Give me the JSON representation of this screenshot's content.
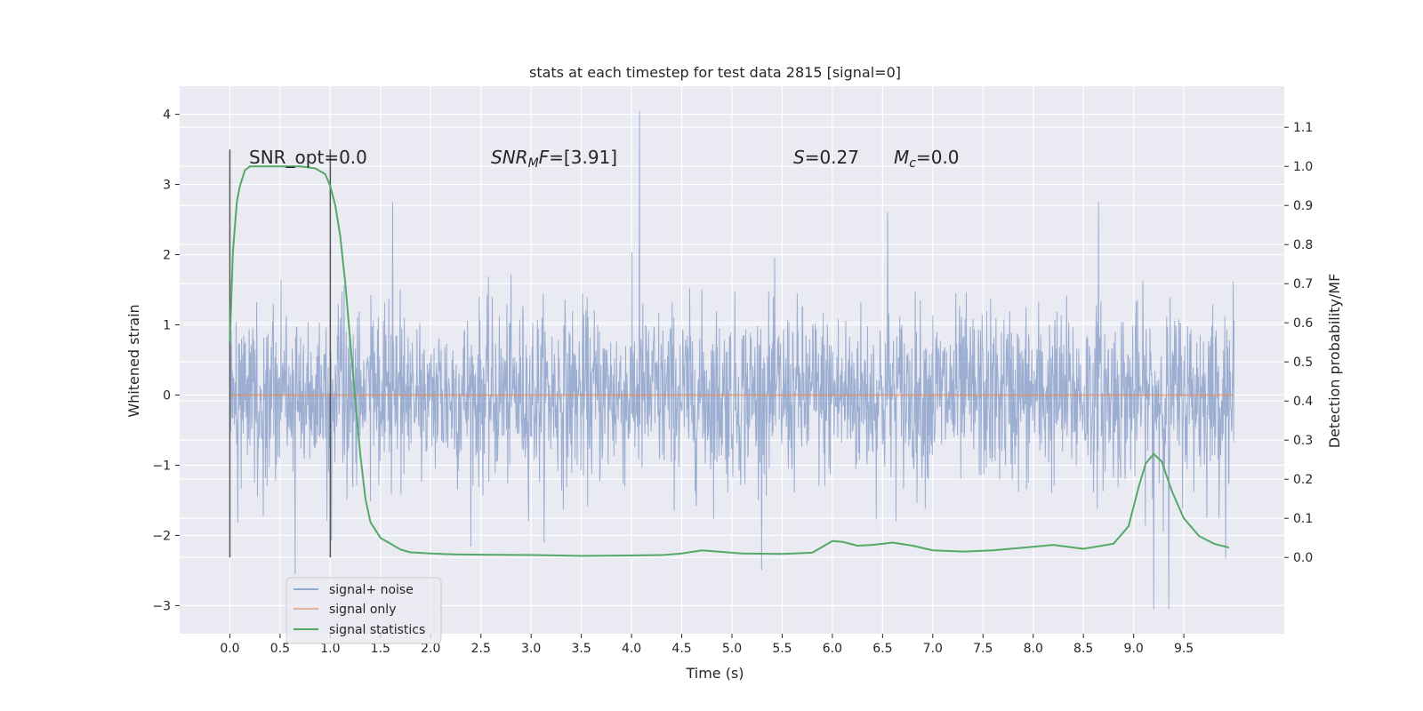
{
  "chart_data": {
    "type": "line",
    "title": "stats at each timestep for test data 2815 [signal=0]",
    "xlabel": "Time (s)",
    "ylabel_left": "Whitened strain",
    "ylabel_right": "Detection probability/MF",
    "xlim": [
      -0.5,
      10.5
    ],
    "ylim_left": [
      -3.4,
      4.4
    ],
    "ylim_right": [
      -0.195,
      1.205
    ],
    "x_ticks": [
      "0.0",
      "0.5",
      "1.0",
      "1.5",
      "2.0",
      "2.5",
      "3.0",
      "3.5",
      "4.0",
      "4.5",
      "5.0",
      "5.5",
      "6.0",
      "6.5",
      "7.0",
      "7.5",
      "8.0",
      "8.5",
      "9.0",
      "9.5"
    ],
    "y_left_ticks": [
      "4",
      "3",
      "2",
      "1",
      "0",
      "−1",
      "−2",
      "−3"
    ],
    "y_right_ticks": [
      "1.1",
      "1.0",
      "0.9",
      "0.8",
      "0.7",
      "0.6",
      "0.5",
      "0.4",
      "0.3",
      "0.2",
      "0.1",
      "0.0"
    ],
    "grid": true,
    "legend_position": "lower-left",
    "colors": {
      "background": "#eaeaf2",
      "grid": "#ffffff",
      "signal_noise": "#4c72b0",
      "signal_only": "#dd8452",
      "statistics": "#55a868",
      "markers": "#555555"
    },
    "annotations": {
      "snr_opt": "SNR_opt=0.0",
      "snr_mf_main": "SNR",
      "snr_mf_sub": "M",
      "snr_mf_rest": "F=[3.91]",
      "s_italic": "S",
      "s_value": "=0.27",
      "mc_main": "M",
      "mc_sub": "c",
      "mc_value": "=0.0"
    },
    "vertical_markers": [
      0.0,
      1.0
    ],
    "series": [
      {
        "name": "signal+ noise",
        "axis": "left",
        "description_values": "noisy whitened strain, roughly between -2.5 and 2.7, peak 4.05 at t=4.08",
        "x_range": [
          0.0,
          10.0
        ],
        "envelope": {
          "upper_typical": 1.5,
          "lower_typical": -1.6,
          "max": 4.05,
          "min": -3.05
        },
        "peaks": [
          [
            4.08,
            4.05
          ],
          [
            9.2,
            -3.05
          ],
          [
            9.35,
            -3.05
          ],
          [
            1.62,
            2.75
          ],
          [
            8.65,
            2.75
          ],
          [
            6.55,
            2.6
          ],
          [
            0.65,
            -2.55
          ]
        ]
      },
      {
        "name": "signal only",
        "axis": "left",
        "x": [
          0.0,
          10.0
        ],
        "y": [
          0.0,
          0.0
        ]
      },
      {
        "name": "signal statistics",
        "axis": "right",
        "x": [
          0.0,
          0.03,
          0.07,
          0.1,
          0.15,
          0.2,
          0.3,
          0.5,
          0.7,
          0.85,
          0.95,
          1.0,
          1.05,
          1.1,
          1.15,
          1.2,
          1.25,
          1.3,
          1.35,
          1.4,
          1.5,
          1.6,
          1.7,
          1.8,
          2.0,
          2.2,
          2.5,
          3.0,
          3.5,
          4.0,
          4.3,
          4.5,
          4.7,
          4.9,
          5.1,
          5.5,
          5.8,
          6.0,
          6.1,
          6.25,
          6.4,
          6.6,
          6.8,
          7.0,
          7.3,
          7.6,
          7.9,
          8.2,
          8.5,
          8.8,
          8.95,
          9.05,
          9.12,
          9.2,
          9.28,
          9.38,
          9.5,
          9.65,
          9.8,
          9.95
        ],
        "y": [
          0.55,
          0.78,
          0.91,
          0.95,
          0.99,
          1.0,
          1.0,
          1.0,
          1.0,
          0.995,
          0.98,
          0.95,
          0.9,
          0.82,
          0.7,
          0.55,
          0.4,
          0.26,
          0.15,
          0.09,
          0.05,
          0.035,
          0.02,
          0.013,
          0.01,
          0.008,
          0.007,
          0.006,
          0.004,
          0.005,
          0.006,
          0.01,
          0.018,
          0.014,
          0.01,
          0.009,
          0.012,
          0.042,
          0.04,
          0.03,
          0.032,
          0.038,
          0.03,
          0.018,
          0.015,
          0.018,
          0.025,
          0.032,
          0.022,
          0.035,
          0.08,
          0.18,
          0.24,
          0.265,
          0.245,
          0.17,
          0.1,
          0.055,
          0.035,
          0.025
        ]
      }
    ]
  },
  "legend": {
    "items": [
      {
        "label": "signal+ noise",
        "color": "#4c72b0"
      },
      {
        "label": "signal only",
        "color": "#dd8452"
      },
      {
        "label": "signal statistics",
        "color": "#55a868"
      }
    ]
  }
}
